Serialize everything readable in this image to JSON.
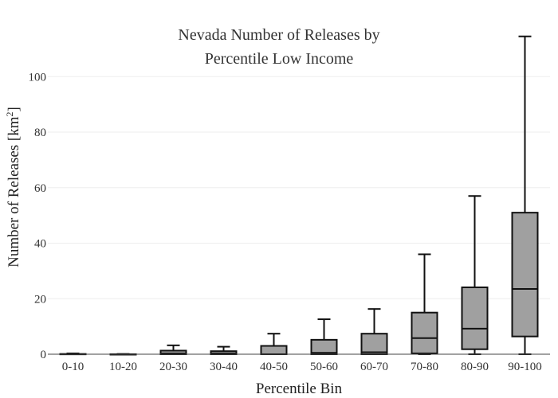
{
  "chart_data": {
    "type": "box",
    "title_line1": "Nevada Number of Releases by",
    "title_line2": "Percentile Low Income",
    "xlabel": "Percentile Bin",
    "ylabel": "Number of Releases  [km",
    "ylabel_sup": "2",
    "ylabel_end": "]",
    "ylim": [
      0,
      117
    ],
    "yticks": [
      0,
      20,
      40,
      60,
      80,
      100
    ],
    "grid": true,
    "box_fill": "#a0a0a0",
    "categories": [
      "0-10",
      "10-20",
      "20-30",
      "30-40",
      "40-50",
      "50-60",
      "60-70",
      "70-80",
      "80-90",
      "90-100"
    ],
    "boxes": [
      {
        "min": 0,
        "q1": 0,
        "median": 0,
        "q3": 0.1,
        "max": 0.3
      },
      {
        "min": 0,
        "q1": 0,
        "median": 0,
        "q3": 0,
        "max": 0.1
      },
      {
        "min": 0,
        "q1": 0,
        "median": 0.3,
        "q3": 1.3,
        "max": 3.2
      },
      {
        "min": 0,
        "q1": 0,
        "median": 0.3,
        "q3": 1.1,
        "max": 2.7
      },
      {
        "min": 0,
        "q1": 0,
        "median": 0,
        "q3": 3,
        "max": 7.4
      },
      {
        "min": 0,
        "q1": 0,
        "median": 0.5,
        "q3": 5.2,
        "max": 12.6
      },
      {
        "min": 0,
        "q1": 0,
        "median": 0.7,
        "q3": 7.4,
        "max": 16.3
      },
      {
        "min": 0,
        "q1": 0.3,
        "median": 5.8,
        "q3": 15,
        "max": 36
      },
      {
        "min": 0,
        "q1": 1.8,
        "median": 9.2,
        "q3": 24.1,
        "max": 57
      },
      {
        "min": 0,
        "q1": 6.4,
        "median": 23.5,
        "q3": 51,
        "max": 114.5
      }
    ]
  }
}
